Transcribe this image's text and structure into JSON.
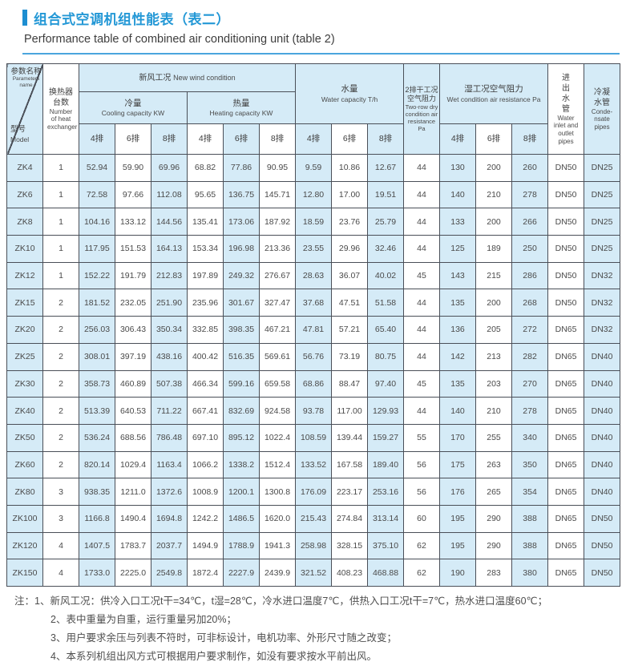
{
  "header": {
    "title_cn": "组合式空调机组性能表（表二）",
    "title_en": "Performance table of combined air conditioning unit (table 2)"
  },
  "table": {
    "corner": {
      "param_cn": "参数名称",
      "param_en": "Parameters name",
      "model_cn": "型号",
      "model_en": "Model"
    },
    "cols": {
      "heat_exchanger_cn": "换热器台数",
      "heat_exchanger_en": "Number of heat exchanger",
      "new_wind_cn": "新风工况",
      "new_wind_en": "New wind condition",
      "cooling_cn": "冷量",
      "cooling_en": "Cooling capacity  KW",
      "heating_cn": "热量",
      "heating_en": "Heating capacity  KW",
      "water_cn": "水量",
      "water_en": "Water capacity  T/h",
      "dry_cn": "2排干工况空气阻力",
      "dry_en": "Two-row dry condition air resistance Pa",
      "wet_cn": "湿工况空气阻力",
      "wet_en": "Wet condition air resistance Pa",
      "pipes_cn": "进出水管",
      "pipes_en": "Water inlet and outlet pipes",
      "condensate_cn": "冷凝水管",
      "condensate_en": "Conde-nsate pipes"
    },
    "rank_labels": [
      "4排",
      "6排",
      "8排"
    ],
    "rows": [
      {
        "model": "ZK4",
        "cells": [
          "1",
          "52.94",
          "59.90",
          "69.96",
          "68.82",
          "77.86",
          "90.95",
          "9.59",
          "10.86",
          "12.67",
          "44",
          "130",
          "200",
          "260",
          "DN50",
          "DN25"
        ]
      },
      {
        "model": "ZK6",
        "cells": [
          "1",
          "72.58",
          "97.66",
          "112.08",
          "95.65",
          "136.75",
          "145.71",
          "12.80",
          "17.00",
          "19.51",
          "44",
          "140",
          "210",
          "278",
          "DN50",
          "DN25"
        ]
      },
      {
        "model": "ZK8",
        "cells": [
          "1",
          "104.16",
          "133.12",
          "144.56",
          "135.41",
          "173.06",
          "187.92",
          "18.59",
          "23.76",
          "25.79",
          "44",
          "133",
          "200",
          "266",
          "DN50",
          "DN25"
        ]
      },
      {
        "model": "ZK10",
        "cells": [
          "1",
          "117.95",
          "151.53",
          "164.13",
          "153.34",
          "196.98",
          "213.36",
          "23.55",
          "29.96",
          "32.46",
          "44",
          "125",
          "189",
          "250",
          "DN50",
          "DN25"
        ]
      },
      {
        "model": "ZK12",
        "cells": [
          "1",
          "152.22",
          "191.79",
          "212.83",
          "197.89",
          "249.32",
          "276.67",
          "28.63",
          "36.07",
          "40.02",
          "45",
          "143",
          "215",
          "286",
          "DN50",
          "DN32"
        ]
      },
      {
        "model": "ZK15",
        "cells": [
          "2",
          "181.52",
          "232.05",
          "251.90",
          "235.96",
          "301.67",
          "327.47",
          "37.68",
          "47.51",
          "51.58",
          "44",
          "135",
          "200",
          "268",
          "DN50",
          "DN32"
        ]
      },
      {
        "model": "ZK20",
        "cells": [
          "2",
          "256.03",
          "306.43",
          "350.34",
          "332.85",
          "398.35",
          "467.21",
          "47.81",
          "57.21",
          "65.40",
          "44",
          "136",
          "205",
          "272",
          "DN65",
          "DN32"
        ]
      },
      {
        "model": "ZK25",
        "cells": [
          "2",
          "308.01",
          "397.19",
          "438.16",
          "400.42",
          "516.35",
          "569.61",
          "56.76",
          "73.19",
          "80.75",
          "44",
          "142",
          "213",
          "282",
          "DN65",
          "DN40"
        ]
      },
      {
        "model": "ZK30",
        "cells": [
          "2",
          "358.73",
          "460.89",
          "507.38",
          "466.34",
          "599.16",
          "659.58",
          "68.86",
          "88.47",
          "97.40",
          "45",
          "135",
          "203",
          "270",
          "DN65",
          "DN40"
        ]
      },
      {
        "model": "ZK40",
        "cells": [
          "2",
          "513.39",
          "640.53",
          "711.22",
          "667.41",
          "832.69",
          "924.58",
          "93.78",
          "117.00",
          "129.93",
          "44",
          "140",
          "210",
          "278",
          "DN65",
          "DN40"
        ]
      },
      {
        "model": "ZK50",
        "cells": [
          "2",
          "536.24",
          "688.56",
          "786.48",
          "697.10",
          "895.12",
          "1022.4",
          "108.59",
          "139.44",
          "159.27",
          "55",
          "170",
          "255",
          "340",
          "DN65",
          "DN40"
        ]
      },
      {
        "model": "ZK60",
        "cells": [
          "2",
          "820.14",
          "1029.4",
          "1163.4",
          "1066.2",
          "1338.2",
          "1512.4",
          "133.52",
          "167.58",
          "189.40",
          "56",
          "175",
          "263",
          "350",
          "DN65",
          "DN40"
        ]
      },
      {
        "model": "ZK80",
        "cells": [
          "3",
          "938.35",
          "1211.0",
          "1372.6",
          "1008.9",
          "1200.1",
          "1300.8",
          "176.09",
          "223.17",
          "253.16",
          "56",
          "176",
          "265",
          "354",
          "DN65",
          "DN40"
        ]
      },
      {
        "model": "ZK100",
        "cells": [
          "3",
          "1166.8",
          "1490.4",
          "1694.8",
          "1242.2",
          "1486.5",
          "1620.0",
          "215.43",
          "274.84",
          "313.14",
          "60",
          "195",
          "290",
          "388",
          "DN65",
          "DN50"
        ]
      },
      {
        "model": "ZK120",
        "cells": [
          "4",
          "1407.5",
          "1783.7",
          "2037.7",
          "1494.9",
          "1788.9",
          "1941.3",
          "258.98",
          "328.15",
          "375.10",
          "62",
          "195",
          "290",
          "388",
          "DN65",
          "DN50"
        ]
      },
      {
        "model": "ZK150",
        "cells": [
          "4",
          "1733.0",
          "2225.0",
          "2549.8",
          "1872.4",
          "2227.9",
          "2439.9",
          "321.52",
          "408.23",
          "468.88",
          "62",
          "190",
          "283",
          "380",
          "DN65",
          "DN50"
        ]
      }
    ]
  },
  "notes": {
    "label": "注：",
    "items": [
      "1、新风工况：供冷入口工况t干=34℃，t湿=28℃，冷水进口温度7℃，供热入口工况t干=7℃，热水进口温度60℃；",
      "2、表中重量为自重，运行重量另加20%；",
      "3、用户要求余压与列表不符时，可非标设计，电机功率、外形尺寸随之改变；",
      "4、本系列机组出风方式可根据用户要求制作，如没有要求按水平前出风。"
    ]
  },
  "colors": {
    "accent_blue": "#2498d6",
    "cell_blue": "#d5ebf7",
    "grid_border": "#4a4f58"
  }
}
